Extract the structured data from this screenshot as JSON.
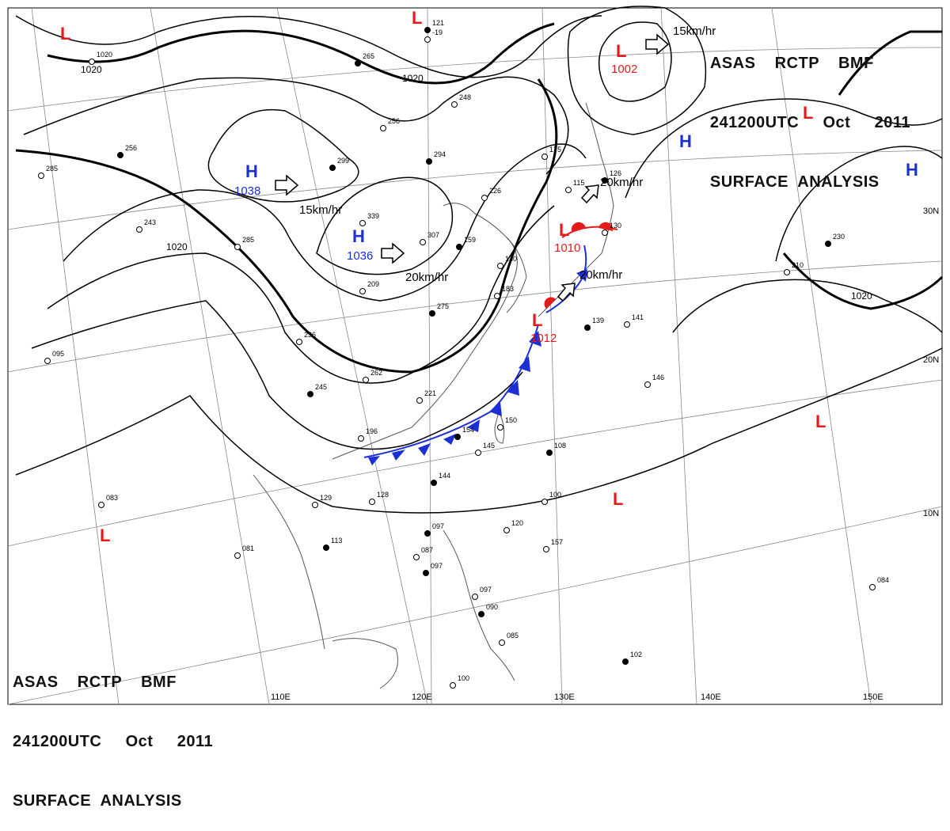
{
  "title": {
    "line1": "ASAS    RCTP    BMF",
    "line2": "241200UTC     Oct     2011",
    "line3": "SURFACE  ANALYSIS"
  },
  "colors": {
    "low": "#e31b1b",
    "high": "#1a2fd6",
    "isobar": "#000000",
    "grid": "#888888",
    "coast": "#555555"
  },
  "isobar_labels": [
    "1020",
    "1020",
    "1020",
    "1020"
  ],
  "lat_labels": [
    "30N",
    "20N",
    "10N"
  ],
  "lon_labels": [
    "110E",
    "120E",
    "130E",
    "140E",
    "150E"
  ],
  "pressure_centers": [
    {
      "type": "L",
      "value": ""
    },
    {
      "type": "L",
      "value": ""
    },
    {
      "type": "L",
      "value": "1002"
    },
    {
      "type": "L",
      "value": ""
    },
    {
      "type": "H",
      "value": ""
    },
    {
      "type": "H",
      "value": ""
    },
    {
      "type": "H",
      "value": "1038"
    },
    {
      "type": "H",
      "value": "1036"
    },
    {
      "type": "L",
      "value": "1010"
    },
    {
      "type": "L",
      "value": "1012"
    },
    {
      "type": "L",
      "value": ""
    },
    {
      "type": "L",
      "value": ""
    },
    {
      "type": "L",
      "value": ""
    }
  ],
  "motion_labels": [
    "15km/hr",
    "20km/hr",
    "15km/hr",
    "20km/hr",
    "20km/hr"
  ],
  "station_values": [
    "121",
    "-19",
    "1020",
    "265",
    "248",
    "256",
    "294",
    "226",
    "339",
    "299",
    "285",
    "243",
    "256",
    "285",
    "307",
    "159",
    "130",
    "209",
    "275",
    "236",
    "262",
    "245",
    "221",
    "196",
    "154",
    "150",
    "145",
    "144",
    "128",
    "129",
    "113",
    "081",
    "083",
    "097",
    "095",
    "100",
    "108",
    "120",
    "157",
    "097",
    "087",
    "097",
    "090",
    "085",
    "100",
    "102",
    "084",
    "141",
    "139",
    "146",
    "210",
    "230",
    "175",
    "115",
    "126",
    "130",
    "183"
  ]
}
